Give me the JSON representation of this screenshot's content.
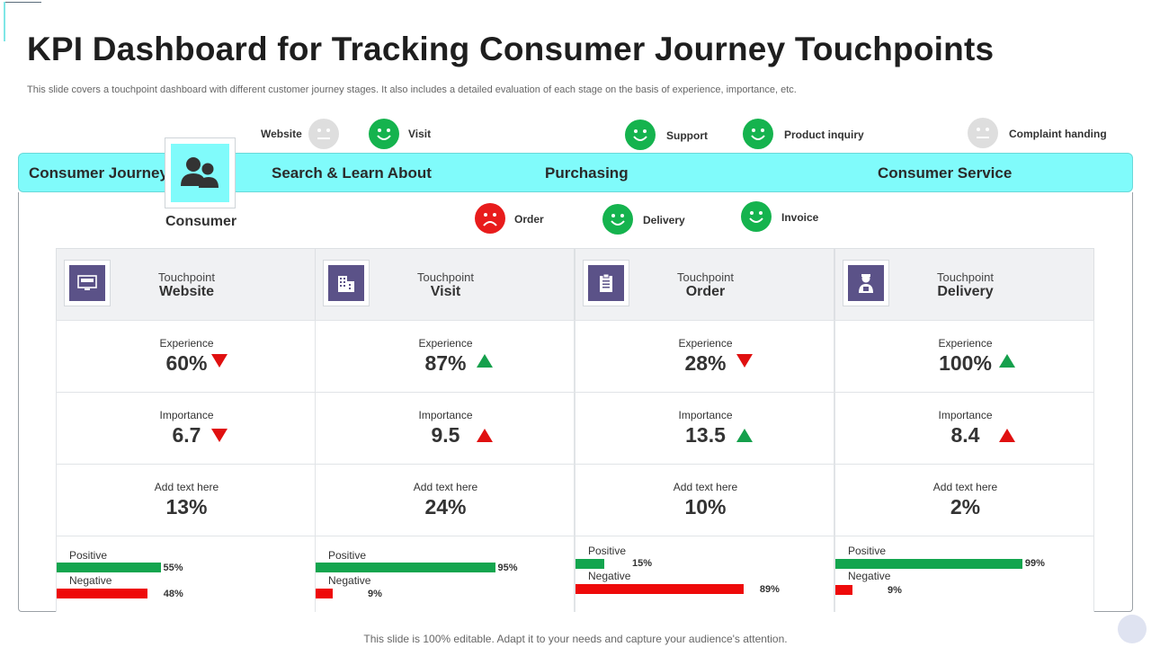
{
  "page": {
    "title": "KPI Dashboard for Tracking Consumer Journey Touchpoints",
    "subtitle": "This slide covers a touchpoint dashboard with different customer journey stages. It also includes a detailed evaluation of each stage on the basis of experience, importance, etc.",
    "footer": "This slide is 100% editable. Adapt it to your needs and capture your audience's attention."
  },
  "colors": {
    "accent_cyan": "#80fbfb",
    "happy_green": "#15b34e",
    "neutral_gray": "#dedede",
    "sad_red": "#e81c1c",
    "icon_purple": "#5b5288",
    "positive_bar": "#13a54e",
    "negative_bar": "#ee0a0a"
  },
  "top_emotions": [
    {
      "label": "Website",
      "mood": "neutral",
      "icon": "neutral-face-icon"
    },
    {
      "label": "Visit",
      "mood": "happy",
      "icon": "smiley-face-icon"
    },
    {
      "label": "Support",
      "mood": "happy",
      "icon": "smiley-face-icon"
    },
    {
      "label": "Product inquiry",
      "mood": "happy",
      "icon": "smiley-face-icon"
    },
    {
      "label": "Complaint handing",
      "mood": "neutral",
      "icon": "neutral-face-icon"
    }
  ],
  "bottom_emotions": [
    {
      "label": "Order",
      "mood": "sad",
      "icon": "sad-face-icon"
    },
    {
      "label": "Delivery",
      "mood": "happy",
      "icon": "smiley-face-icon"
    },
    {
      "label": "Invoice",
      "mood": "happy",
      "icon": "smiley-face-icon"
    }
  ],
  "journey": {
    "label": "Consumer Journey",
    "stages": [
      "Search & Learn About",
      "Purchasing",
      "Consumer Service"
    ],
    "consumer_label": "Consumer",
    "consumer_icon": "users-icon"
  },
  "touchpoints": [
    {
      "small": "Touchpoint",
      "name": "Website",
      "icon": "website-icon",
      "experience_label": "Experience",
      "experience": "60%",
      "experience_trend": "down",
      "importance_label": "Importance",
      "importance": "6.7",
      "importance_trend": "down",
      "extra_label": "Add text here",
      "extra_value": "13%",
      "positive_label": "Positive",
      "positive_pct": 55,
      "positive_text": "55%",
      "negative_label": "Negative",
      "negative_pct": 48,
      "negative_text": "48%"
    },
    {
      "small": "Touchpoint",
      "name": "Visit",
      "icon": "building-icon",
      "experience_label": "Experience",
      "experience": "87%",
      "experience_trend": "up",
      "importance_label": "Importance",
      "importance": "9.5",
      "importance_trend": "up-red",
      "extra_label": "Add text here",
      "extra_value": "24%",
      "positive_label": "Positive",
      "positive_pct": 95,
      "positive_text": "95%",
      "negative_label": "Negative",
      "negative_pct": 9,
      "negative_text": "9%"
    },
    {
      "small": "Touchpoint",
      "name": "Order",
      "icon": "clipboard-icon",
      "experience_label": "Experience",
      "experience": "28%",
      "experience_trend": "down",
      "importance_label": "Importance",
      "importance": "13.5",
      "importance_trend": "up",
      "extra_label": "Add text here",
      "extra_value": "10%",
      "positive_label": "Positive",
      "positive_pct": 15,
      "positive_text": "15%",
      "negative_label": "Negative",
      "negative_pct": 89,
      "negative_text": "89%"
    },
    {
      "small": "Touchpoint",
      "name": "Delivery",
      "icon": "delivery-person-icon",
      "experience_label": "Experience",
      "experience": "100%",
      "experience_trend": "up",
      "importance_label": "Importance",
      "importance": "8.4",
      "importance_trend": "up-red",
      "extra_label": "Add text here",
      "extra_value": "2%",
      "positive_label": "Positive",
      "positive_pct": 99,
      "positive_text": "99%",
      "negative_label": "Negative",
      "negative_pct": 9,
      "negative_text": "9%"
    }
  ]
}
